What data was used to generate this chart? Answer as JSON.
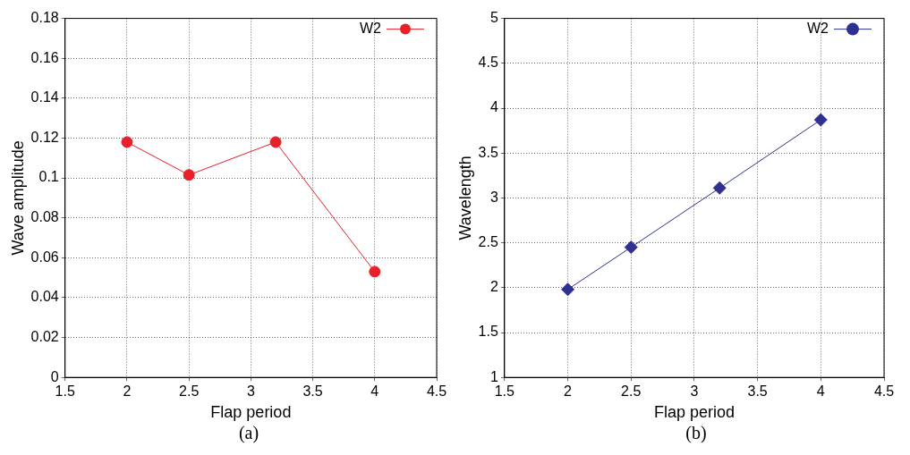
{
  "chart_data": [
    {
      "type": "line",
      "xlabel": "Flap period",
      "ylabel": "Wave amplitude",
      "annotations": [
        "(a)"
      ],
      "x": [
        2,
        2.5,
        3.2,
        4
      ],
      "series": [
        {
          "name": "W2",
          "color": "#e8202a",
          "values": [
            0.118,
            0.1015,
            0.118,
            0.053
          ]
        }
      ],
      "xlim": [
        1.5,
        4.5
      ],
      "xticks": [
        1.5,
        2,
        2.5,
        3,
        3.5,
        4,
        4.5
      ],
      "ylim": [
        0,
        0.18
      ],
      "yticks": [
        0,
        0.02,
        0.04,
        0.06,
        0.08,
        0.1,
        0.12,
        0.14,
        0.16,
        0.18
      ],
      "grid": true,
      "legend": "top right",
      "marker": "circle",
      "line_style": "solid"
    },
    {
      "type": "line",
      "xlabel": "Flap period",
      "ylabel": "Wavelength",
      "annotations": [
        "(b)"
      ],
      "x": [
        2,
        2.5,
        3.2,
        4
      ],
      "series": [
        {
          "name": "W2",
          "color": "#2e3192",
          "values": [
            1.98,
            2.45,
            3.11,
            3.87
          ]
        }
      ],
      "xlim": [
        1.5,
        4.5
      ],
      "xticks": [
        1.5,
        2,
        2.5,
        3,
        3.5,
        4,
        4.5
      ],
      "ylim": [
        1,
        5
      ],
      "yticks": [
        1,
        1.5,
        2,
        2.5,
        3,
        3.5,
        4,
        4.5,
        5
      ],
      "grid": true,
      "legend": "top right",
      "marker": "diamond",
      "line_style": "solid"
    }
  ]
}
